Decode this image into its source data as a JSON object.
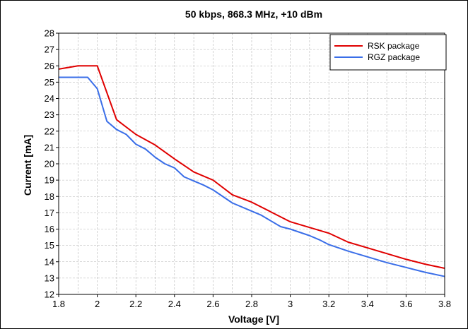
{
  "chart_data": {
    "type": "line",
    "title": "50 kbps, 868.3 MHz, +10 dBm",
    "xlabel": "Voltage [V]",
    "ylabel": "Current [mA]",
    "xlim": [
      1.8,
      3.8
    ],
    "ylim": [
      12,
      28
    ],
    "xticks": [
      "1.8",
      "2",
      "2.2",
      "2.4",
      "2.6",
      "2.8",
      "3",
      "3.2",
      "3.4",
      "3.6",
      "3.8"
    ],
    "yticks": [
      "12",
      "13",
      "14",
      "15",
      "16",
      "17",
      "18",
      "19",
      "20",
      "21",
      "22",
      "23",
      "24",
      "25",
      "26",
      "27",
      "28"
    ],
    "grid": true,
    "legend_position": "top-right",
    "series": [
      {
        "name": "RSK package",
        "color": "#e00000",
        "x": [
          1.8,
          1.9,
          2.0,
          2.1,
          2.2,
          2.3,
          2.4,
          2.5,
          2.6,
          2.7,
          2.8,
          2.9,
          3.0,
          3.1,
          3.2,
          3.3,
          3.4,
          3.5,
          3.6,
          3.7,
          3.8
        ],
        "y": [
          25.8,
          26.0,
          26.0,
          22.7,
          21.8,
          21.15,
          20.3,
          19.5,
          19.0,
          18.1,
          17.65,
          17.05,
          16.45,
          16.1,
          15.75,
          15.2,
          14.85,
          14.5,
          14.15,
          13.85,
          13.6
        ]
      },
      {
        "name": "RGZ package",
        "color": "#3a6ee8",
        "x": [
          1.8,
          1.9,
          1.95,
          2.0,
          2.05,
          2.1,
          2.15,
          2.2,
          2.25,
          2.3,
          2.35,
          2.4,
          2.45,
          2.5,
          2.55,
          2.6,
          2.7,
          2.8,
          2.85,
          2.9,
          2.95,
          3.0,
          3.1,
          3.15,
          3.2,
          3.3,
          3.4,
          3.5,
          3.6,
          3.7,
          3.8
        ],
        "y": [
          25.3,
          25.3,
          25.3,
          24.6,
          22.6,
          22.1,
          21.8,
          21.2,
          20.9,
          20.4,
          20.0,
          19.75,
          19.2,
          18.95,
          18.7,
          18.4,
          17.6,
          17.1,
          16.85,
          16.5,
          16.15,
          16.0,
          15.6,
          15.35,
          15.05,
          14.65,
          14.3,
          13.95,
          13.65,
          13.35,
          13.1
        ]
      }
    ]
  }
}
